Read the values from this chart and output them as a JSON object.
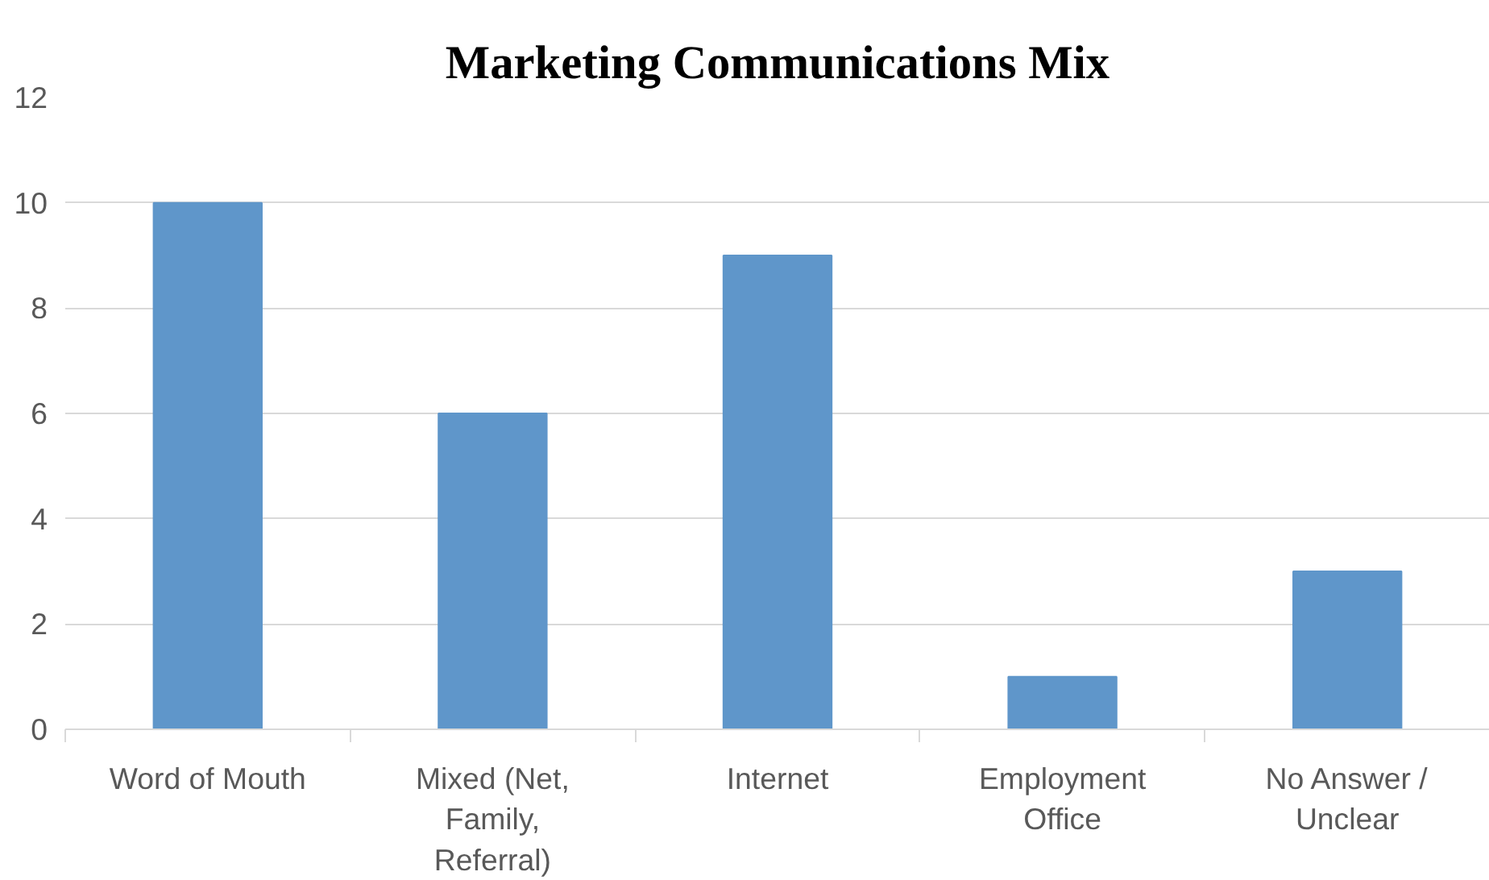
{
  "chart_data": {
    "type": "bar",
    "title": "Marketing Communications Mix",
    "categories": [
      "Word of Mouth",
      "Mixed (Net, Family, Referral)",
      "Internet",
      "Employment Office",
      "No Answer / Unclear"
    ],
    "values": [
      10,
      6,
      9,
      1,
      3
    ],
    "color": "#5f96ca",
    "ylim": [
      0,
      12
    ],
    "yticks": [
      0,
      2,
      4,
      6,
      8,
      10,
      12
    ],
    "grid": "y"
  }
}
